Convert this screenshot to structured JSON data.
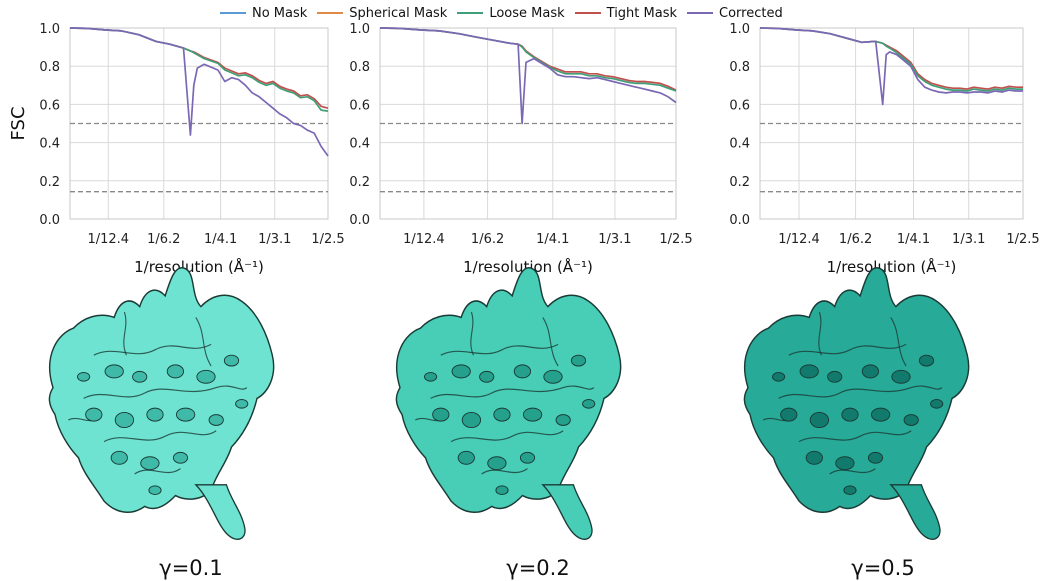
{
  "legend": [
    {
      "label": "No Mask",
      "color": "#5b9bd5"
    },
    {
      "label": "Spherical Mask",
      "color": "#e08a45"
    },
    {
      "label": "Loose Mask",
      "color": "#3f9f78"
    },
    {
      "label": "Tight Mask",
      "color": "#c0504d"
    },
    {
      "label": "Corrected",
      "color": "#7b68b5"
    }
  ],
  "chart_data": [
    {
      "type": "line",
      "ylabel": "FSC",
      "xlabel": "1/resolution (Å⁻¹)",
      "xlim": [
        0.025,
        0.4
      ],
      "ylim": [
        0,
        1
      ],
      "xticks": [
        0.0806,
        0.1613,
        0.2439,
        0.3226,
        0.4
      ],
      "xtick_labels": [
        "1/12.4",
        "1/6.2",
        "1/4.1",
        "1/3.1",
        "1/2.5"
      ],
      "yticks": [
        0,
        0.2,
        0.4,
        0.6,
        0.8,
        1.0
      ],
      "ytick_labels": [
        "0.0",
        "0.2",
        "0.4",
        "0.6",
        "0.8",
        "1.0"
      ],
      "hlines": [
        0.5,
        0.143
      ],
      "grid": true,
      "x": [
        0.025,
        0.05,
        0.075,
        0.1,
        0.125,
        0.15,
        0.17,
        0.19,
        0.2,
        0.205,
        0.21,
        0.22,
        0.24,
        0.25,
        0.26,
        0.27,
        0.28,
        0.29,
        0.3,
        0.31,
        0.32,
        0.33,
        0.34,
        0.35,
        0.36,
        0.37,
        0.38,
        0.39,
        0.4
      ],
      "series": [
        {
          "name": "Tight Mask",
          "values": [
            1.0,
            0.998,
            0.99,
            0.985,
            0.965,
            0.93,
            0.915,
            0.895,
            0.88,
            0.875,
            0.865,
            0.845,
            0.82,
            0.79,
            0.775,
            0.76,
            0.765,
            0.75,
            0.725,
            0.71,
            0.72,
            0.695,
            0.68,
            0.67,
            0.645,
            0.65,
            0.63,
            0.59,
            0.58
          ]
        },
        {
          "name": "Loose Mask",
          "values": [
            1.0,
            0.998,
            0.99,
            0.985,
            0.965,
            0.93,
            0.915,
            0.895,
            0.88,
            0.87,
            0.86,
            0.84,
            0.815,
            0.78,
            0.765,
            0.75,
            0.755,
            0.74,
            0.715,
            0.7,
            0.71,
            0.685,
            0.67,
            0.66,
            0.635,
            0.64,
            0.62,
            0.57,
            0.565
          ]
        },
        {
          "name": "Corrected",
          "values": [
            1.0,
            0.998,
            0.99,
            0.985,
            0.965,
            0.93,
            0.915,
            0.895,
            0.44,
            0.7,
            0.79,
            0.81,
            0.78,
            0.72,
            0.74,
            0.73,
            0.7,
            0.66,
            0.64,
            0.61,
            0.58,
            0.55,
            0.53,
            0.5,
            0.49,
            0.465,
            0.45,
            0.38,
            0.33
          ]
        }
      ]
    },
    {
      "type": "line",
      "ylabel": "",
      "xlabel": "1/resolution (Å⁻¹)",
      "xlim": [
        0.025,
        0.4
      ],
      "ylim": [
        0,
        1
      ],
      "xticks": [
        0.0806,
        0.1613,
        0.2439,
        0.3226,
        0.4
      ],
      "xtick_labels": [
        "1/12.4",
        "1/6.2",
        "1/4.1",
        "1/3.1",
        "1/2.5"
      ],
      "yticks": [
        0,
        0.2,
        0.4,
        0.6,
        0.8,
        1.0
      ],
      "ytick_labels": [
        "0.0",
        "0.2",
        "0.4",
        "0.6",
        "0.8",
        "1.0"
      ],
      "hlines": [
        0.5,
        0.143
      ],
      "grid": true,
      "x": [
        0.025,
        0.05,
        0.075,
        0.1,
        0.125,
        0.15,
        0.17,
        0.19,
        0.2,
        0.205,
        0.21,
        0.22,
        0.24,
        0.25,
        0.26,
        0.27,
        0.28,
        0.29,
        0.3,
        0.31,
        0.32,
        0.33,
        0.34,
        0.35,
        0.36,
        0.37,
        0.38,
        0.39,
        0.4
      ],
      "series": [
        {
          "name": "Tight Mask",
          "values": [
            1.0,
            0.998,
            0.99,
            0.985,
            0.97,
            0.95,
            0.935,
            0.92,
            0.915,
            0.905,
            0.88,
            0.85,
            0.8,
            0.785,
            0.77,
            0.77,
            0.77,
            0.76,
            0.76,
            0.75,
            0.745,
            0.735,
            0.725,
            0.72,
            0.72,
            0.715,
            0.71,
            0.695,
            0.675
          ]
        },
        {
          "name": "Loose Mask",
          "values": [
            1.0,
            0.998,
            0.99,
            0.985,
            0.97,
            0.95,
            0.935,
            0.92,
            0.915,
            0.9,
            0.875,
            0.845,
            0.795,
            0.775,
            0.76,
            0.76,
            0.76,
            0.75,
            0.75,
            0.74,
            0.735,
            0.725,
            0.715,
            0.71,
            0.71,
            0.705,
            0.7,
            0.685,
            0.67
          ]
        },
        {
          "name": "Corrected",
          "values": [
            1.0,
            0.998,
            0.99,
            0.985,
            0.97,
            0.95,
            0.935,
            0.92,
            0.915,
            0.5,
            0.82,
            0.84,
            0.79,
            0.755,
            0.745,
            0.745,
            0.74,
            0.735,
            0.74,
            0.73,
            0.72,
            0.71,
            0.7,
            0.69,
            0.68,
            0.67,
            0.66,
            0.64,
            0.61
          ]
        }
      ]
    },
    {
      "type": "line",
      "ylabel": "",
      "xlabel": "1/resolution (Å⁻¹)",
      "xlim": [
        0.025,
        0.4
      ],
      "ylim": [
        0,
        1
      ],
      "xticks": [
        0.0806,
        0.1613,
        0.2439,
        0.3226,
        0.4
      ],
      "xtick_labels": [
        "1/12.4",
        "1/6.2",
        "1/4.1",
        "1/3.1",
        "1/2.5"
      ],
      "yticks": [
        0,
        0.2,
        0.4,
        0.6,
        0.8,
        1.0
      ],
      "ytick_labels": [
        "0.0",
        "0.2",
        "0.4",
        "0.6",
        "0.8",
        "1.0"
      ],
      "hlines": [
        0.5,
        0.143
      ],
      "grid": true,
      "x": [
        0.025,
        0.05,
        0.075,
        0.1,
        0.125,
        0.15,
        0.17,
        0.19,
        0.2,
        0.205,
        0.21,
        0.22,
        0.24,
        0.25,
        0.26,
        0.27,
        0.28,
        0.29,
        0.3,
        0.31,
        0.32,
        0.33,
        0.34,
        0.35,
        0.36,
        0.37,
        0.38,
        0.39,
        0.4
      ],
      "series": [
        {
          "name": "Tight Mask",
          "values": [
            1.0,
            0.998,
            0.99,
            0.985,
            0.97,
            0.945,
            0.925,
            0.93,
            0.92,
            0.91,
            0.9,
            0.88,
            0.82,
            0.76,
            0.73,
            0.71,
            0.7,
            0.69,
            0.685,
            0.685,
            0.68,
            0.69,
            0.685,
            0.68,
            0.69,
            0.685,
            0.695,
            0.69,
            0.69
          ]
        },
        {
          "name": "Loose Mask",
          "values": [
            1.0,
            0.998,
            0.99,
            0.985,
            0.97,
            0.945,
            0.925,
            0.93,
            0.92,
            0.905,
            0.895,
            0.87,
            0.81,
            0.75,
            0.72,
            0.7,
            0.69,
            0.68,
            0.675,
            0.675,
            0.67,
            0.68,
            0.675,
            0.67,
            0.68,
            0.675,
            0.685,
            0.68,
            0.68
          ]
        },
        {
          "name": "Corrected",
          "values": [
            1.0,
            0.998,
            0.99,
            0.985,
            0.97,
            0.945,
            0.925,
            0.93,
            0.6,
            0.86,
            0.875,
            0.86,
            0.8,
            0.73,
            0.69,
            0.675,
            0.665,
            0.66,
            0.665,
            0.665,
            0.66,
            0.665,
            0.665,
            0.66,
            0.67,
            0.665,
            0.675,
            0.67,
            0.67
          ]
        }
      ]
    }
  ],
  "structures": [
    {
      "label": "γ=0.1",
      "fill": "#6fe3d1",
      "shade": "#3fb9a8"
    },
    {
      "label": "γ=0.2",
      "fill": "#48cdb6",
      "shade": "#24a08c"
    },
    {
      "label": "γ=0.5",
      "fill": "#27aa98",
      "shade": "#127a6c"
    }
  ]
}
